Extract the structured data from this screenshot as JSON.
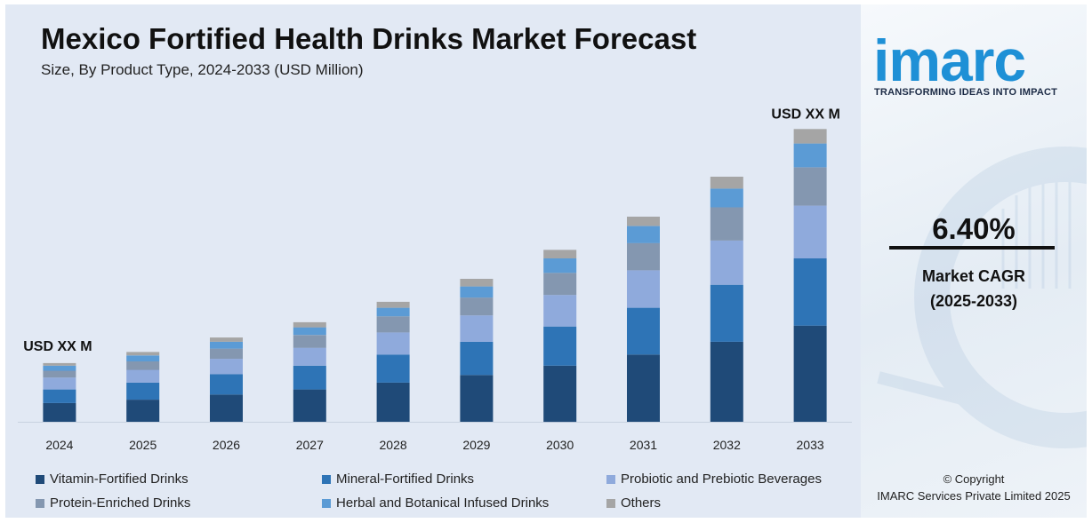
{
  "title": "Mexico Fortified Health Drinks Market Forecast",
  "subtitle": "Size, By Product Type, 2024-2033 (USD Million)",
  "annotations": {
    "first_bar_label": "USD XX M",
    "last_bar_label": "USD XX M"
  },
  "brand": {
    "name": "imarc",
    "tagline": "TRANSFORMING IDEAS INTO IMPACT",
    "color": "#1e90d6"
  },
  "cagr": {
    "value": "6.40%",
    "label_line1": "Market CAGR",
    "label_line2": "(2025-2033)"
  },
  "copyright": {
    "line1": "© Copyright",
    "line2": "IMARC Services Private Limited 2025"
  },
  "chart_data": {
    "type": "bar",
    "stacked": true,
    "categories": [
      "2024",
      "2025",
      "2026",
      "2027",
      "2028",
      "2029",
      "2030",
      "2031",
      "2032",
      "2033"
    ],
    "series": [
      {
        "name": "Vitamin-Fortified Drinks",
        "color": "#1f4a78",
        "values": [
          22,
          26,
          32,
          38,
          46,
          55,
          66,
          79,
          94,
          113
        ]
      },
      {
        "name": "Mineral-Fortified Drinks",
        "color": "#2e74b6",
        "values": [
          16,
          20,
          24,
          28,
          33,
          39,
          46,
          55,
          67,
          79
        ]
      },
      {
        "name": "Probiotic and Prebiotic Beverages",
        "color": "#8faadc",
        "values": [
          14,
          15,
          18,
          21,
          26,
          31,
          37,
          44,
          52,
          62
        ]
      },
      {
        "name": "Protein-Enriched Drinks",
        "color": "#8497b0",
        "values": [
          8,
          10,
          12,
          15,
          19,
          21,
          26,
          32,
          39,
          45
        ]
      },
      {
        "name": "Herbal and Botanical Infused Drinks",
        "color": "#5b9bd5",
        "values": [
          6,
          7,
          8,
          9,
          10,
          13,
          17,
          20,
          22,
          28
        ]
      },
      {
        "name": "Others",
        "color": "#a5a5a5",
        "values": [
          3,
          4,
          5,
          6,
          7,
          9,
          10,
          11,
          14,
          17
        ]
      }
    ],
    "ylim": [
      0,
      360
    ],
    "xlabel": "",
    "ylabel": "",
    "grid": false,
    "legend_position": "bottom"
  }
}
